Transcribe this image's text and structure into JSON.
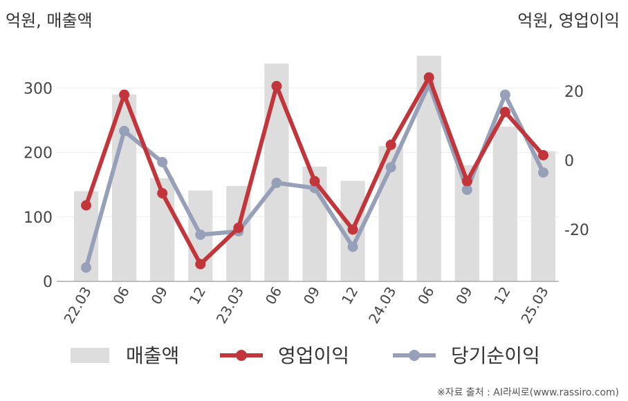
{
  "chart_data": {
    "type": "bar+line",
    "categories": [
      "22.03",
      "06",
      "09",
      "12",
      "23.03",
      "06",
      "09",
      "12",
      "24.03",
      "06",
      "09",
      "12",
      "25.03"
    ],
    "left_axis": {
      "unit_label": "억원, 매출액",
      "ticks": [
        0,
        100,
        200,
        300
      ],
      "range": [
        0,
        370
      ]
    },
    "right_axis": {
      "unit_label": "억원, 영업이익",
      "ticks": [
        20,
        0,
        -20
      ],
      "range": [
        -35,
        34
      ]
    },
    "series": [
      {
        "name": "매출액",
        "type": "bar",
        "axis": "left",
        "color": "#dddddd",
        "values": [
          140,
          290,
          160,
          141,
          148,
          338,
          178,
          156,
          210,
          350,
          180,
          240,
          202
        ]
      },
      {
        "name": "영업이익",
        "type": "line",
        "axis": "right",
        "color": "#c2353a",
        "values": [
          -13,
          19,
          -9.5,
          -30,
          -19.5,
          21.5,
          -6,
          -20,
          4.5,
          24,
          -6,
          14,
          1.5
        ]
      },
      {
        "name": "당기순이익",
        "type": "line",
        "axis": "right",
        "color": "#96a0b9",
        "values": [
          -31,
          8.5,
          -0.5,
          -21.5,
          -20.5,
          -6.5,
          -8,
          -25,
          -2,
          22,
          -8.5,
          19,
          -3.5
        ]
      }
    ],
    "grid": true,
    "legend": "bottom"
  },
  "source": "※자료 출처 : AI라씨로(www.rassiro.com)"
}
